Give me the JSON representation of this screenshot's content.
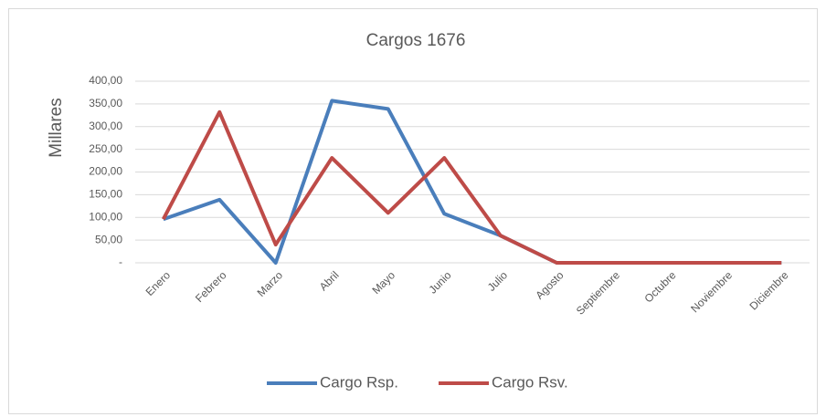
{
  "chart_data": {
    "type": "line",
    "title": "Cargos 1676",
    "y_label": "Millares",
    "categories": [
      "Enero",
      "Febrero",
      "Marzo",
      "Abril",
      "Mayo",
      "Junio",
      "Julio",
      "Agosto",
      "Septiembre",
      "Octubre",
      "Noviembre",
      "Diciembre"
    ],
    "series": [
      {
        "name": "Cargo Rsp.",
        "color": "#4a7ebb",
        "values": [
          96,
          139,
          0,
          357,
          339,
          108,
          60,
          0,
          0,
          0,
          0,
          0
        ]
      },
      {
        "name": "Cargo Rsv.",
        "color": "#be4b48",
        "values": [
          96,
          332,
          40,
          231,
          110,
          231,
          60,
          0,
          0,
          0,
          0,
          0
        ]
      }
    ],
    "ylim": [
      0,
      400
    ],
    "yticks": [
      {
        "value": 0,
        "label": "-"
      },
      {
        "value": 50,
        "label": "50,00"
      },
      {
        "value": 100,
        "label": "100,00"
      },
      {
        "value": 150,
        "label": "150,00"
      },
      {
        "value": 200,
        "label": "200,00"
      },
      {
        "value": 250,
        "label": "250,00"
      },
      {
        "value": 300,
        "label": "300,00"
      },
      {
        "value": 350,
        "label": "350,00"
      },
      {
        "value": 400,
        "label": "400,00"
      }
    ],
    "grid": true,
    "legend": "bottom"
  }
}
